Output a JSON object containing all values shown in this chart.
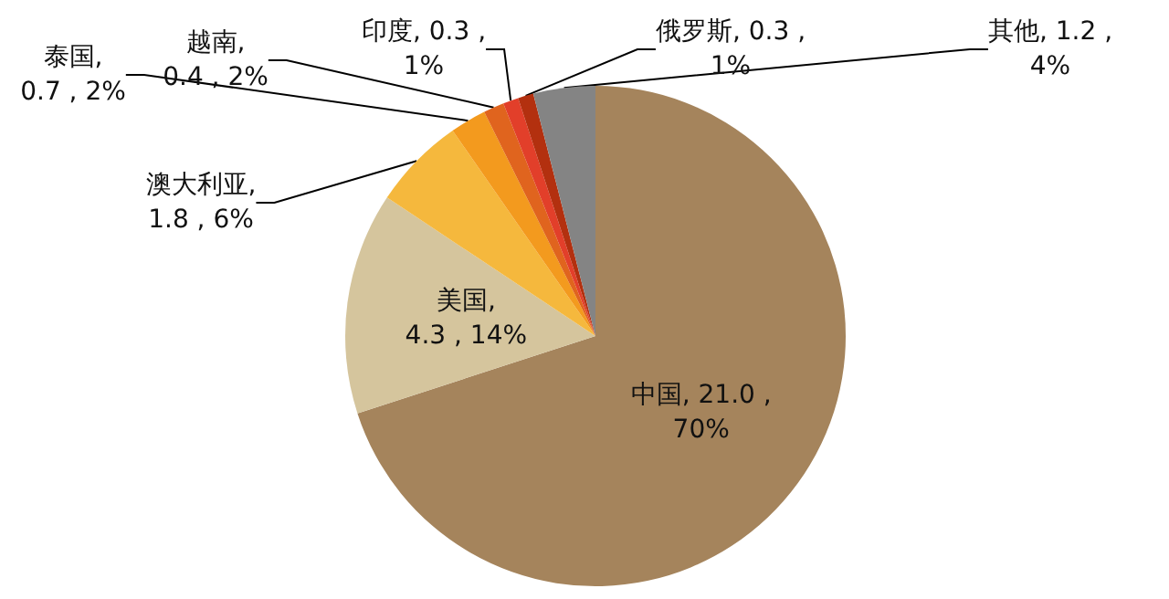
{
  "chart_data": {
    "type": "pie",
    "categories": [
      "中国",
      "美国",
      "澳大利亚",
      "泰国",
      "越南",
      "印度",
      "俄罗斯",
      "其他"
    ],
    "values": [
      21.0,
      4.3,
      1.8,
      0.7,
      0.4,
      0.3,
      0.3,
      1.2
    ],
    "value_labels": [
      ", 21.0 ,\n70%",
      ",\n4.3 , 14%",
      ",\n1.8 , 6%",
      ",\n0.7 , 2%",
      ",\n0.4 , 2%",
      ", 0.3 ,\n1%",
      ", 0.3 ,\n1%",
      ", 1.2 ,\n4%"
    ],
    "colors": [
      "#a5845c",
      "#d5c59d",
      "#f5b83d",
      "#f39a1e",
      "#e0641e",
      "#e23f2a",
      "#b3300f",
      "#848484"
    ],
    "legend": false
  }
}
